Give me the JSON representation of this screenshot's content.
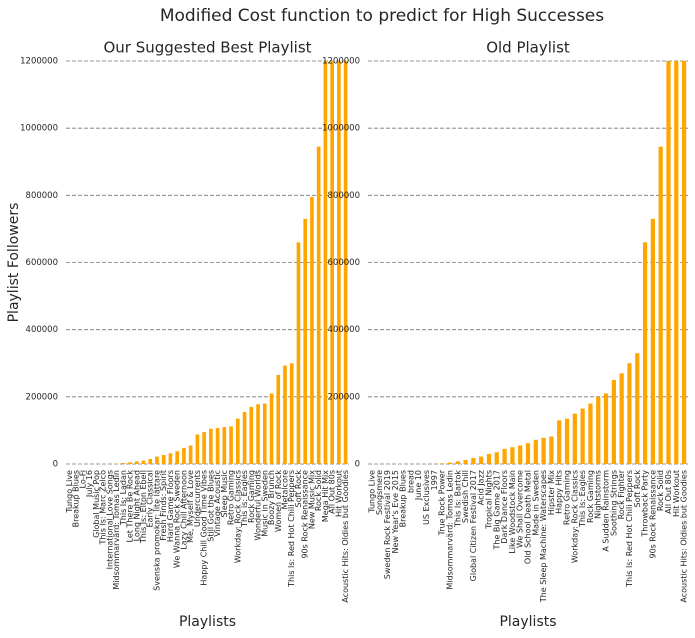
{
  "title": "Modified Cost function to predict for High Successes",
  "chart_data": [
    {
      "type": "bar",
      "title": "Our Suggested Best Playlist",
      "xlabel": "Playlists",
      "ylabel": "Playlist Followers",
      "color": "#ffa500",
      "grid": true,
      "ylim": [
        0,
        1200000
      ],
      "yticks": [
        0,
        200000,
        400000,
        600000,
        800000,
        1000000,
        1200000
      ],
      "categories": [
        "Tungo Live",
        "Breakup Blues",
        "Lo-Fi",
        "July 16",
        "Global Music Pop",
        "This Is: Marc Zelco",
        "International Love Songs",
        "Midsommarvärd: Tomas Ledin",
        "This Is: Ladan",
        "Let There Be Rock",
        "Long Night Ahead",
        "This Is: Elton Ebell",
        "Early Classical",
        "Svenska promokar: lite lättare",
        "Fresh Finds: Spirit",
        "Hard Game Floors",
        "We Wanna Rock Sweden",
        "Lazy Chill Afternoon",
        "Me, Myself & Love",
        "Undercurrents",
        "Happy Chill Good Time Vibes",
        "Still Got the Blues",
        "Vintage Acoustic",
        "Sleep Music",
        "Retro Gaming",
        "Workday: Rock Classics",
        "This is: Eagles",
        "Rock Gaming",
        "Wonderful Worlds",
        "Music in Sweden",
        "Boozy Brunch",
        "Women of Rock",
        "Metalcore",
        "This Is: Red Hot Chili Peppers",
        "Soft Rock",
        "90s Rock Renaissance",
        "New Music Mix",
        "Rock Solid",
        "Mega Hit Mix",
        "All Out 80s",
        "Hit Workout",
        "Acoustic Hits: Oldies but Goodies"
      ],
      "values": [
        0,
        0,
        0,
        0,
        0,
        0,
        0,
        1500,
        3000,
        5000,
        8000,
        10000,
        15000,
        22000,
        27000,
        32000,
        38000,
        48000,
        55000,
        88000,
        95000,
        105000,
        107000,
        110000,
        112000,
        135000,
        155000,
        170000,
        178000,
        180000,
        210000,
        265000,
        293000,
        300000,
        660000,
        730000,
        795000,
        945000,
        1200000,
        1200000,
        1200000,
        1200000
      ]
    },
    {
      "type": "bar",
      "title": "Old Playlist",
      "xlabel": "Playlists",
      "color": "#ffa500",
      "grid": true,
      "ylim": [
        0,
        1200000
      ],
      "yticks": [
        0,
        200000,
        400000,
        600000,
        800000,
        1000000,
        1200000
      ],
      "categories": [
        "Tungo Live",
        "Songsmere",
        "Sweden Rock Festival 2019",
        "New Year's Eve 2015",
        "Breakup Blues",
        "bread",
        "June 10",
        "US Exclusives",
        "1997",
        "True Rock Power",
        "Midsommarvärd: Tomas Ledin",
        "This Is: Bartok",
        "Swedish Chill",
        "Global Citizen Festival 2017",
        "Acid Jazz",
        "Tropical Nights",
        "The Big Game 2017",
        "Dark Dance Floors",
        "Like Woodstock Main",
        "We Shall Overcome",
        "Old School Death Metal",
        "Made in Sweden",
        "The Sleep Machine: Waterscapes",
        "Hipster Mix",
        "Happy Hits",
        "Retro Gaming",
        "Workday: Rock Classics",
        "This Is: Eagles",
        "Rock Gaming",
        "Nightstorms",
        "A Sudden Rainstorm",
        "Soothing Strings",
        "Rock Fighter",
        "This Is: Red Hot Chili Peppers",
        "Soft Rock",
        "Throwback Party",
        "90s Rock Renaissance",
        "Rock Solid",
        "All Out 80s",
        "Hit Workout",
        "Acoustic Hits: Oldies but Goodies"
      ],
      "values": [
        0,
        0,
        0,
        0,
        0,
        0,
        0,
        0,
        0,
        2000,
        4000,
        8000,
        12000,
        18000,
        22000,
        30000,
        35000,
        45000,
        50000,
        55000,
        62000,
        72000,
        78000,
        82000,
        130000,
        135000,
        150000,
        165000,
        180000,
        200000,
        210000,
        250000,
        270000,
        300000,
        330000,
        660000,
        730000,
        945000,
        1200000,
        1200000,
        1200000
      ]
    }
  ]
}
